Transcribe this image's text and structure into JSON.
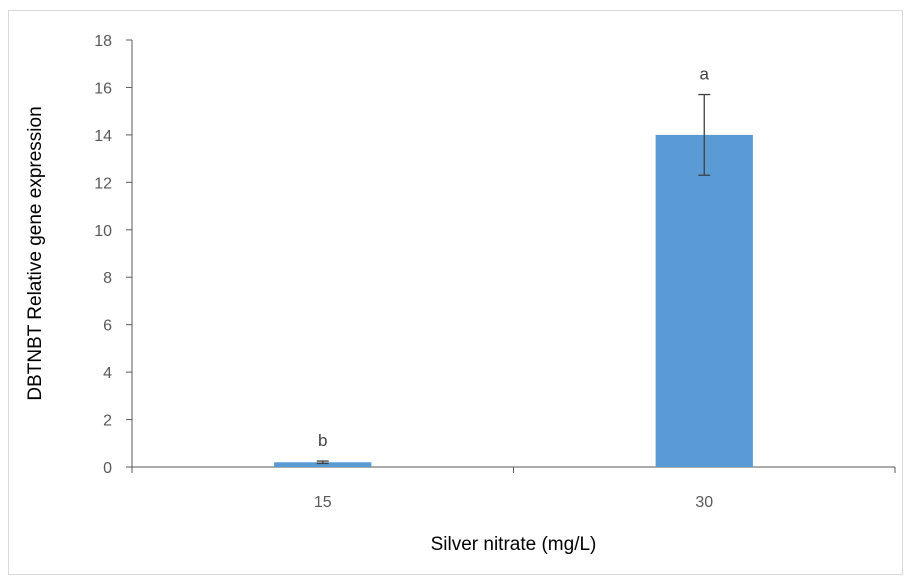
{
  "chart_data": {
    "type": "bar",
    "categories": [
      "15",
      "30"
    ],
    "values": [
      0.2,
      14.0
    ],
    "error": [
      0.05,
      1.7
    ],
    "significance": [
      "b",
      "a"
    ],
    "xlabel": "Silver nitrate (mg/L)",
    "ylabel": "DBTNBT Relative gene expression",
    "ylim": [
      0,
      18
    ],
    "yticks": [
      "0",
      "2",
      "4",
      "6",
      "8",
      "10",
      "12",
      "14",
      "16",
      "18"
    ],
    "grid": false,
    "legend": "none",
    "bar_color": "#5b9bd5",
    "error_color": "#404040"
  }
}
